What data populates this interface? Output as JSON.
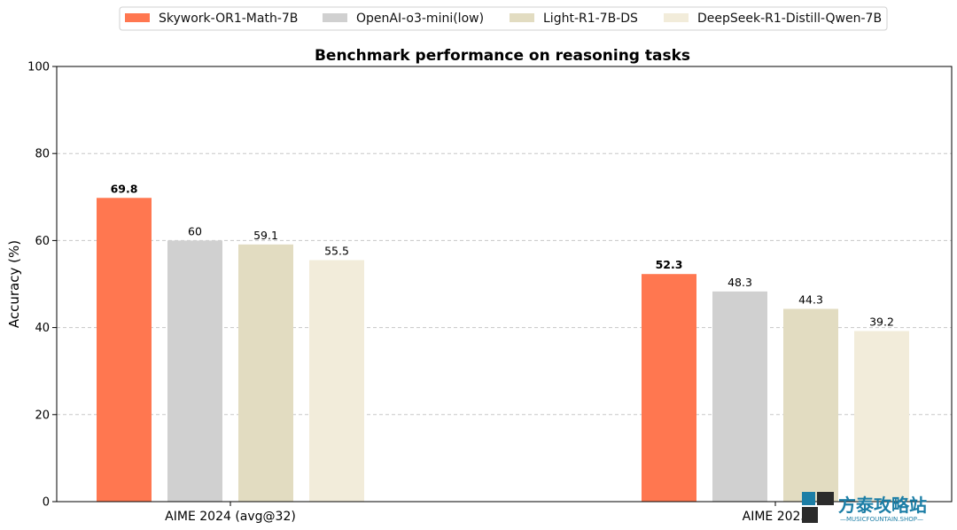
{
  "chart_data": {
    "type": "bar",
    "title": "Benchmark performance on reasoning tasks",
    "xlabel": "",
    "ylabel": "Accuracy (%)",
    "ylim": [
      0,
      100
    ],
    "yticks": [
      0,
      20,
      40,
      60,
      80,
      100
    ],
    "grid": "y-dashed",
    "legend_position": "top-center",
    "categories": [
      "AIME 2024 (avg@32)",
      "AIME 2025"
    ],
    "series": [
      {
        "name": "Skywork-OR1-Math-7B",
        "values": [
          69.8,
          52.3
        ],
        "color": "#ff7750",
        "label_bold": true
      },
      {
        "name": "OpenAI-o3-mini(low)",
        "values": [
          60,
          48.3
        ],
        "color": "#d0d0d0",
        "label_bold": false
      },
      {
        "name": "Light-R1-7B-DS",
        "values": [
          59.1,
          44.3
        ],
        "color": "#e2dcc1",
        "label_bold": false
      },
      {
        "name": "DeepSeek-R1-Distill-Qwen-7B",
        "values": [
          55.5,
          39.2
        ],
        "color": "#f2ecda",
        "label_bold": false
      }
    ],
    "data_labels": [
      [
        "69.8",
        "60",
        "59.1",
        "55.5"
      ],
      [
        "52.3",
        "48.3",
        "44.3",
        "39.2"
      ]
    ]
  },
  "watermark": {
    "text": "方泰攻略站",
    "subtext": "—MUSICFOUNTAIN.SHOP—",
    "color": "#1c7ea6",
    "icon": "pixel-block-icon"
  }
}
